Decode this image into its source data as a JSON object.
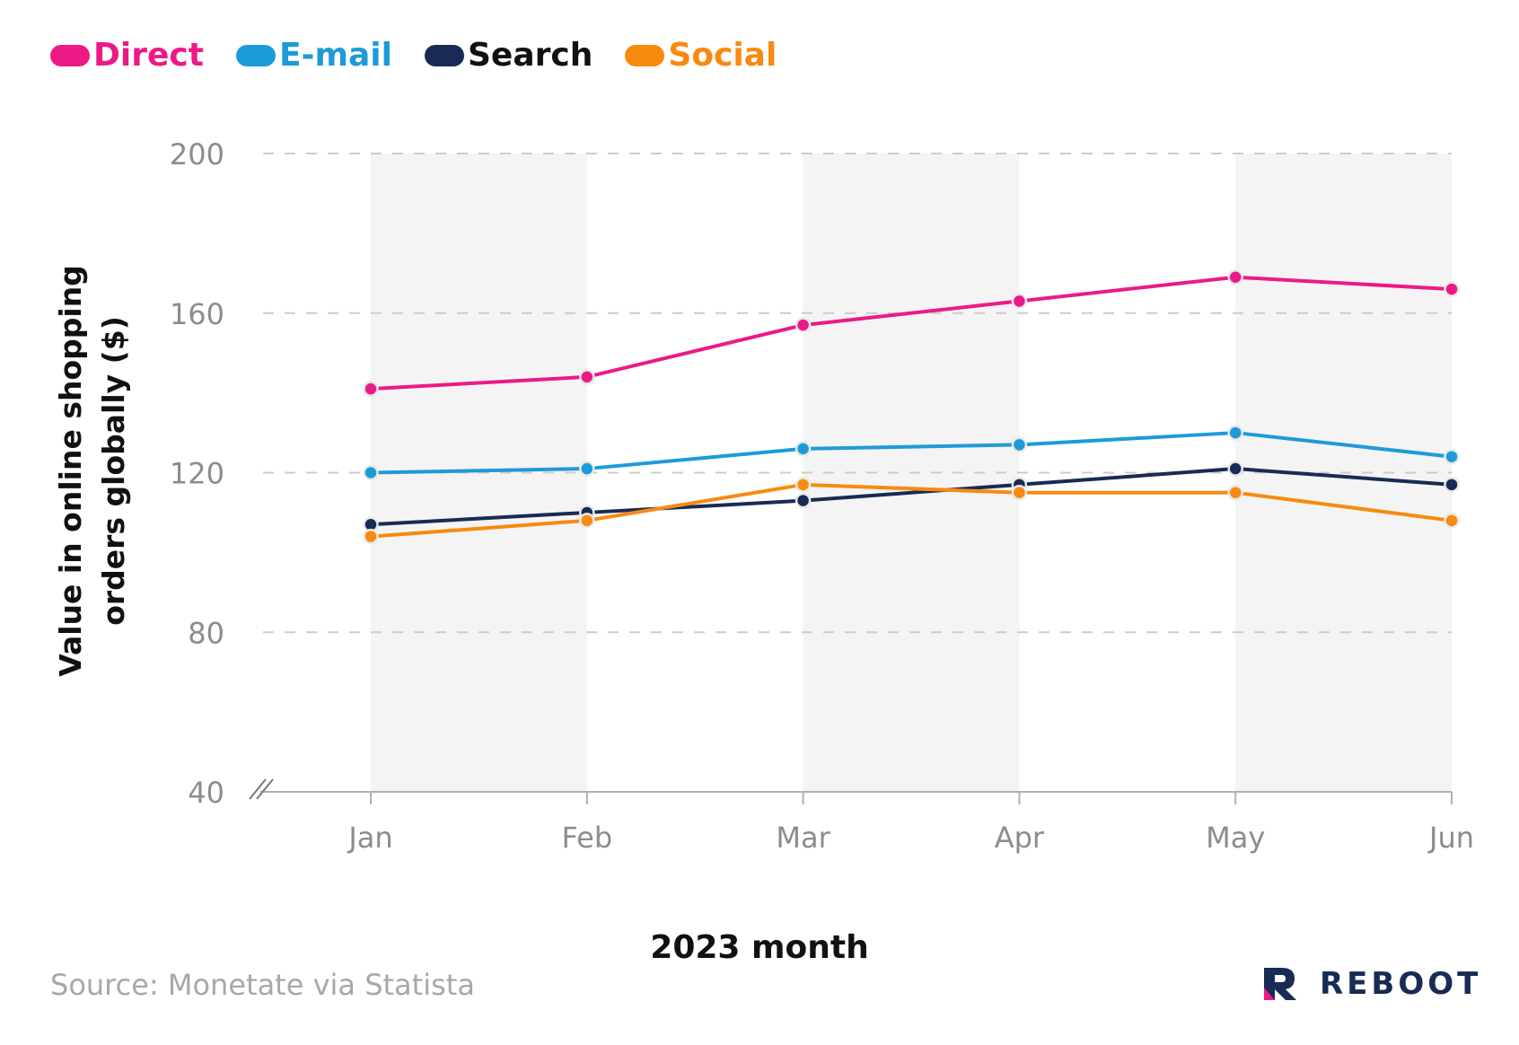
{
  "legend": [
    {
      "name": "Direct",
      "color": "#ec1a87"
    },
    {
      "name": "E-mail",
      "color": "#1d9bd9"
    },
    {
      "name": "Search",
      "color": "#172b55"
    },
    {
      "name": "Social",
      "color": "#f88a10"
    }
  ],
  "chart_data": {
    "type": "line",
    "title": "",
    "xlabel": "2023 month",
    "ylabel": "Value in online shopping orders globally ($)",
    "categories": [
      "Jan",
      "Feb",
      "Mar",
      "Apr",
      "May",
      "Jun"
    ],
    "ylim": [
      40,
      200
    ],
    "yticks": [
      40,
      80,
      120,
      160,
      200
    ],
    "grid": "horizontal dashed",
    "legend_position": "top-left",
    "series": [
      {
        "name": "Direct",
        "color": "#ec1a87",
        "values": [
          141,
          144,
          157,
          163,
          169,
          166
        ]
      },
      {
        "name": "E-mail",
        "color": "#1d9bd9",
        "values": [
          120,
          121,
          126,
          127,
          130,
          124
        ]
      },
      {
        "name": "Search",
        "color": "#172b55",
        "values": [
          107,
          110,
          113,
          117,
          121,
          117
        ]
      },
      {
        "name": "Social",
        "color": "#f88a10",
        "values": [
          104,
          108,
          117,
          115,
          115,
          108
        ]
      }
    ]
  },
  "source": "Source: Monetate via Statista",
  "brand": {
    "name": "REBOOT",
    "logo_icon": "reboot-r-logo-icon"
  }
}
